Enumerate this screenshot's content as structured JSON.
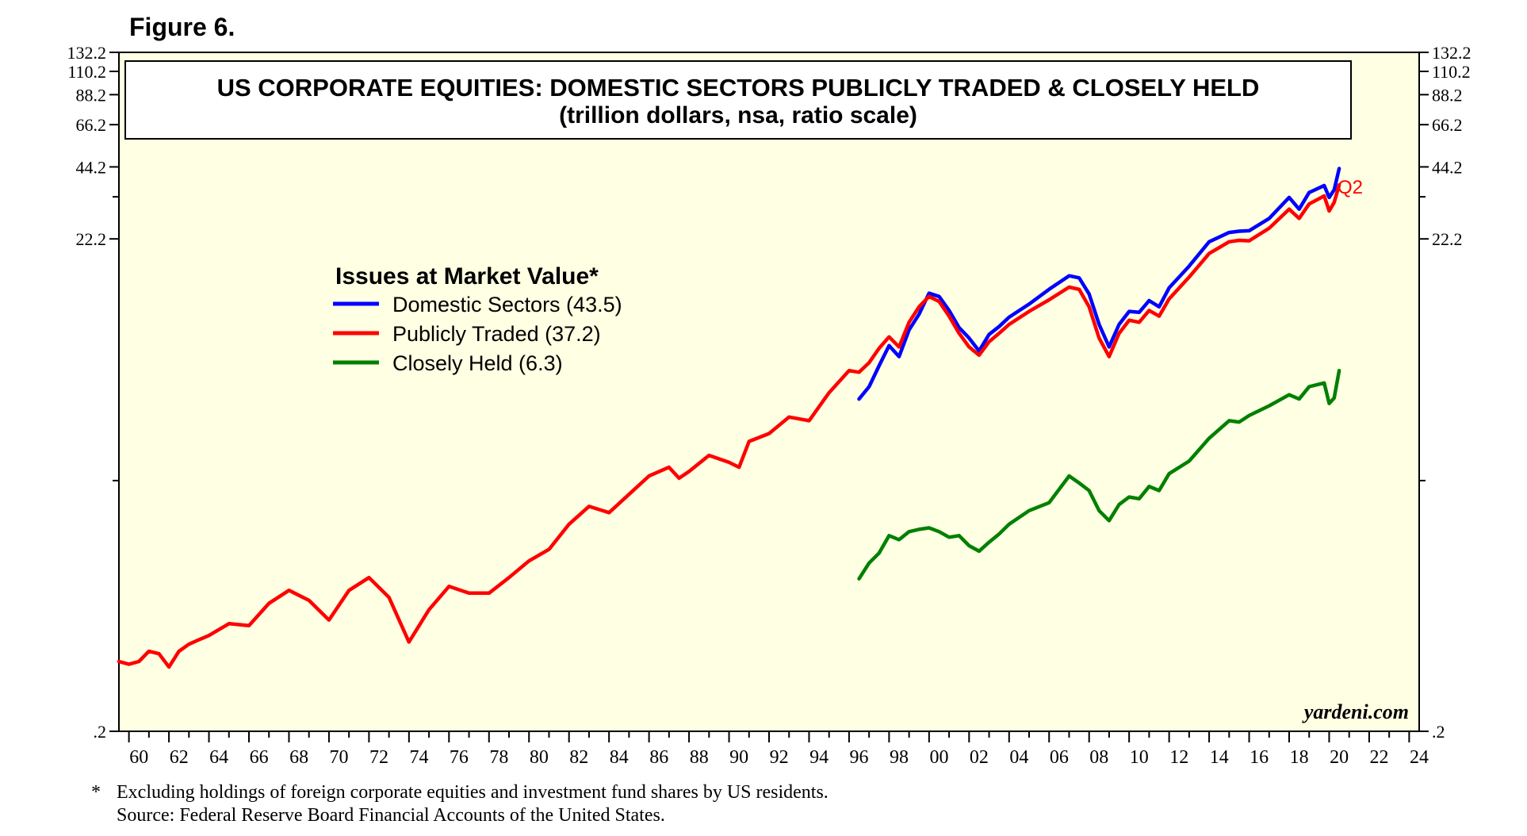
{
  "figure_label": "Figure 6.",
  "chart_data": {
    "type": "line",
    "title": "US CORPORATE EQUITIES: DOMESTIC SECTORS PUBLICLY TRADED & CLOSELY HELD",
    "subtitle": "(trillion dollars, nsa, ratio scale)",
    "yscale": "log",
    "ylim": [
      0.2,
      132.2
    ],
    "y_ticks": [
      ".2",
      "22.2",
      "44.2",
      "66.2",
      "88.2",
      "110.2",
      "132.2"
    ],
    "xlim": [
      1959.5,
      2024.5
    ],
    "x_ticks": [
      "60",
      "62",
      "64",
      "66",
      "68",
      "70",
      "72",
      "74",
      "76",
      "78",
      "80",
      "82",
      "84",
      "86",
      "88",
      "90",
      "92",
      "94",
      "96",
      "98",
      "00",
      "02",
      "04",
      "06",
      "08",
      "10",
      "12",
      "14",
      "16",
      "18",
      "20",
      "22",
      "24"
    ],
    "legend_title": "Issues at Market Value*",
    "legend_position": "upper-left",
    "latest_label": "Q2",
    "watermark": "yardeni.com",
    "background_color": "#ffffe3",
    "series": [
      {
        "name": "Domestic Sectors (43.5)",
        "color": "#0000ff",
        "x": [
          1996.5,
          1997.0,
          1997.5,
          1998.0,
          1998.5,
          1999.0,
          1999.5,
          2000.0,
          2000.5,
          2001.0,
          2001.5,
          2002.0,
          2002.5,
          2003.0,
          2003.5,
          2004.0,
          2005.0,
          2006.0,
          2007.0,
          2007.5,
          2008.0,
          2008.5,
          2009.0,
          2009.5,
          2010.0,
          2010.5,
          2011.0,
          2011.5,
          2012.0,
          2013.0,
          2014.0,
          2015.0,
          2015.5,
          2016.0,
          2017.0,
          2018.0,
          2018.5,
          2019.0,
          2019.75,
          2020.0,
          2020.25,
          2020.5
        ],
        "values": [
          4.8,
          5.4,
          6.6,
          8.0,
          7.2,
          9.3,
          10.8,
          13.2,
          12.8,
          11.2,
          9.5,
          8.6,
          7.6,
          8.9,
          9.6,
          10.5,
          11.9,
          13.7,
          15.6,
          15.3,
          13.1,
          9.8,
          7.9,
          9.8,
          11.1,
          11.0,
          12.3,
          11.6,
          13.9,
          17.1,
          21.6,
          23.6,
          23.9,
          24.0,
          27.0,
          33.0,
          29.5,
          34.6,
          37.0,
          33.0,
          35.5,
          43.5
        ]
      },
      {
        "name": "Publicly Traded (37.2)",
        "color": "#ff0000",
        "x": [
          1959.5,
          1960.0,
          1960.5,
          1961.0,
          1961.5,
          1962.0,
          1962.5,
          1963.0,
          1963.5,
          1964.0,
          1965.0,
          1966.0,
          1967.0,
          1968.0,
          1969.0,
          1970.0,
          1971.0,
          1972.0,
          1973.0,
          1974.0,
          1975.0,
          1976.0,
          1977.0,
          1978.0,
          1979.0,
          1980.0,
          1981.0,
          1982.0,
          1983.0,
          1984.0,
          1985.0,
          1986.0,
          1987.0,
          1987.5,
          1988.0,
          1989.0,
          1990.0,
          1990.5,
          1991.0,
          1992.0,
          1993.0,
          1994.0,
          1995.0,
          1996.0,
          1996.5,
          1997.0,
          1997.5,
          1998.0,
          1998.5,
          1999.0,
          1999.5,
          2000.0,
          2000.5,
          2001.0,
          2001.5,
          2002.0,
          2002.5,
          2003.0,
          2003.5,
          2004.0,
          2005.0,
          2006.0,
          2007.0,
          2007.5,
          2008.0,
          2008.5,
          2009.0,
          2009.5,
          2010.0,
          2010.5,
          2011.0,
          2011.5,
          2012.0,
          2013.0,
          2014.0,
          2015.0,
          2015.5,
          2016.0,
          2017.0,
          2018.0,
          2018.5,
          2019.0,
          2019.75,
          2020.0,
          2020.25,
          2020.5
        ],
        "values": [
          0.39,
          0.38,
          0.39,
          0.43,
          0.42,
          0.37,
          0.43,
          0.46,
          0.48,
          0.5,
          0.56,
          0.55,
          0.68,
          0.77,
          0.7,
          0.58,
          0.77,
          0.87,
          0.72,
          0.47,
          0.64,
          0.8,
          0.75,
          0.75,
          0.87,
          1.02,
          1.14,
          1.45,
          1.72,
          1.62,
          1.93,
          2.3,
          2.5,
          2.25,
          2.4,
          2.8,
          2.62,
          2.5,
          3.2,
          3.45,
          4.04,
          3.9,
          5.1,
          6.3,
          6.2,
          6.8,
          7.8,
          8.7,
          7.9,
          10.0,
          11.6,
          12.8,
          12.2,
          10.6,
          9.0,
          7.9,
          7.3,
          8.3,
          9.0,
          9.8,
          11.1,
          12.4,
          14.0,
          13.7,
          11.6,
          8.6,
          7.2,
          9.0,
          10.2,
          10.0,
          11.2,
          10.6,
          12.5,
          15.4,
          19.3,
          21.6,
          21.9,
          21.8,
          24.6,
          29.5,
          27.0,
          31.0,
          33.5,
          29.0,
          31.5,
          37.2
        ]
      },
      {
        "name": "Closely Held (6.3)",
        "color": "#008000",
        "x": [
          1996.5,
          1997.0,
          1997.5,
          1998.0,
          1998.5,
          1999.0,
          1999.5,
          2000.0,
          2000.5,
          2001.0,
          2001.5,
          2002.0,
          2002.5,
          2003.0,
          2003.5,
          2004.0,
          2005.0,
          2006.0,
          2007.0,
          2007.5,
          2008.0,
          2008.5,
          2009.0,
          2009.5,
          2010.0,
          2010.5,
          2011.0,
          2011.5,
          2012.0,
          2013.0,
          2014.0,
          2015.0,
          2015.5,
          2016.0,
          2017.0,
          2018.0,
          2018.5,
          2019.0,
          2019.75,
          2020.0,
          2020.25,
          2020.5
        ],
        "values": [
          0.86,
          1.0,
          1.1,
          1.3,
          1.25,
          1.35,
          1.38,
          1.4,
          1.35,
          1.28,
          1.3,
          1.18,
          1.12,
          1.22,
          1.32,
          1.45,
          1.65,
          1.78,
          2.3,
          2.15,
          2.0,
          1.65,
          1.5,
          1.75,
          1.88,
          1.85,
          2.08,
          2.0,
          2.35,
          2.65,
          3.3,
          3.9,
          3.85,
          4.1,
          4.5,
          5.0,
          4.8,
          5.4,
          5.6,
          4.6,
          4.85,
          6.3
        ]
      }
    ]
  },
  "footnote": {
    "marker": "*",
    "line1": "Excluding holdings of foreign corporate equities and investment fund shares by US residents.",
    "line2": "Source: Federal Reserve Board Financial Accounts of the United States."
  }
}
